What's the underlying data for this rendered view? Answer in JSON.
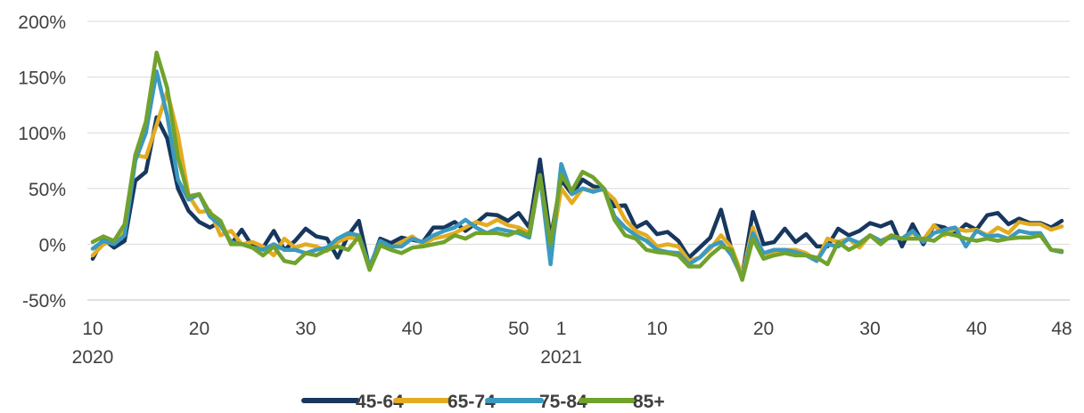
{
  "chart_data": {
    "type": "line",
    "title": "",
    "xlabel": "",
    "ylabel": "",
    "ylim": [
      -50,
      200
    ],
    "y_ticks": [
      -50,
      0,
      50,
      100,
      150,
      200
    ],
    "y_tick_labels": [
      "-50%",
      "0%",
      "50%",
      "100%",
      "150%",
      "200%"
    ],
    "grid": "horizontal",
    "legend_position": "bottom",
    "x_tick_labels": [
      {
        "week": 10,
        "year": 2020,
        "label": "10",
        "sublabel": "2020"
      },
      {
        "week": 20,
        "year": 2020,
        "label": "20"
      },
      {
        "week": 30,
        "year": 2020,
        "label": "30"
      },
      {
        "week": 40,
        "year": 2020,
        "label": "40"
      },
      {
        "week": 50,
        "year": 2020,
        "label": "50"
      },
      {
        "week": 1,
        "year": 2021,
        "label": "1",
        "sublabel": "2021"
      },
      {
        "week": 10,
        "year": 2021,
        "label": "10"
      },
      {
        "week": 20,
        "year": 2021,
        "label": "20"
      },
      {
        "week": 30,
        "year": 2021,
        "label": "30"
      },
      {
        "week": 40,
        "year": 2021,
        "label": "40"
      },
      {
        "week": 48,
        "year": 2021,
        "label": "48"
      }
    ],
    "x": [
      "2020-W10",
      "2020-W11",
      "2020-W12",
      "2020-W13",
      "2020-W14",
      "2020-W15",
      "2020-W16",
      "2020-W17",
      "2020-W18",
      "2020-W19",
      "2020-W20",
      "2020-W21",
      "2020-W22",
      "2020-W23",
      "2020-W24",
      "2020-W25",
      "2020-W26",
      "2020-W27",
      "2020-W28",
      "2020-W29",
      "2020-W30",
      "2020-W31",
      "2020-W32",
      "2020-W33",
      "2020-W34",
      "2020-W35",
      "2020-W36",
      "2020-W37",
      "2020-W38",
      "2020-W39",
      "2020-W40",
      "2020-W41",
      "2020-W42",
      "2020-W43",
      "2020-W44",
      "2020-W45",
      "2020-W46",
      "2020-W47",
      "2020-W48",
      "2020-W49",
      "2020-W50",
      "2020-W51",
      "2020-W52",
      "2020-W53",
      "2021-W01",
      "2021-W02",
      "2021-W03",
      "2021-W04",
      "2021-W05",
      "2021-W06",
      "2021-W07",
      "2021-W08",
      "2021-W09",
      "2021-W10",
      "2021-W11",
      "2021-W12",
      "2021-W13",
      "2021-W14",
      "2021-W15",
      "2021-W16",
      "2021-W17",
      "2021-W18",
      "2021-W19",
      "2021-W20",
      "2021-W21",
      "2021-W22",
      "2021-W23",
      "2021-W24",
      "2021-W25",
      "2021-W26",
      "2021-W27",
      "2021-W28",
      "2021-W29",
      "2021-W30",
      "2021-W31",
      "2021-W32",
      "2021-W33",
      "2021-W34",
      "2021-W35",
      "2021-W36",
      "2021-W37",
      "2021-W38",
      "2021-W39",
      "2021-W40",
      "2021-W41",
      "2021-W42",
      "2021-W43",
      "2021-W44",
      "2021-W45",
      "2021-W46",
      "2021-W47",
      "2021-W48"
    ],
    "series": [
      {
        "name": "45-64",
        "color": "#17375E",
        "values": [
          -13,
          5,
          -3,
          3,
          57,
          65,
          114,
          95,
          50,
          30,
          20,
          15,
          20,
          0,
          13,
          -2,
          -3,
          12,
          -5,
          3,
          14,
          7,
          5,
          -12,
          8,
          21,
          -22,
          5,
          1,
          6,
          4,
          2,
          15,
          15,
          20,
          12,
          19,
          27,
          26,
          21,
          28,
          15,
          76,
          5,
          58,
          45,
          58,
          52,
          50,
          34,
          35,
          15,
          20,
          9,
          11,
          3,
          -12,
          -3,
          6,
          31,
          -5,
          -28,
          29,
          0,
          2,
          14,
          2,
          9,
          -2,
          -2,
          14,
          8,
          12,
          19,
          16,
          20,
          -2,
          18,
          0,
          17,
          15,
          9,
          18,
          13,
          26,
          28,
          18,
          23,
          19,
          19,
          15,
          21
        ]
      },
      {
        "name": "65-74",
        "color": "#E3AC20",
        "values": [
          -10,
          0,
          3,
          11,
          80,
          78,
          107,
          137,
          98,
          44,
          29,
          30,
          8,
          12,
          0,
          2,
          -2,
          -10,
          5,
          -3,
          0,
          -2,
          -6,
          2,
          6,
          5,
          -20,
          2,
          -3,
          2,
          7,
          0,
          5,
          7,
          10,
          15,
          20,
          17,
          22,
          17,
          15,
          10,
          62,
          -8,
          50,
          37,
          50,
          48,
          49,
          40,
          22,
          12,
          8,
          -2,
          0,
          -2,
          -15,
          -12,
          -4,
          8,
          -3,
          -28,
          15,
          -12,
          -8,
          -5,
          -5,
          -8,
          -15,
          5,
          2,
          5,
          -3,
          8,
          3,
          8,
          5,
          10,
          4,
          17,
          8,
          14,
          12,
          13,
          8,
          15,
          10,
          20,
          18,
          18,
          13,
          16
        ]
      },
      {
        "name": "75-84",
        "color": "#3B9AC0",
        "values": [
          -4,
          3,
          0,
          8,
          75,
          100,
          155,
          115,
          58,
          40,
          45,
          25,
          17,
          2,
          0,
          -3,
          -5,
          0,
          -5,
          -5,
          -8,
          -5,
          -3,
          5,
          10,
          8,
          -20,
          3,
          -2,
          -2,
          5,
          2,
          8,
          12,
          15,
          22,
          15,
          10,
          14,
          12,
          10,
          6,
          62,
          -18,
          72,
          45,
          50,
          47,
          50,
          25,
          15,
          8,
          3,
          -5,
          -7,
          -8,
          -18,
          -12,
          -2,
          2,
          -10,
          -30,
          10,
          -8,
          -5,
          -5,
          -7,
          -10,
          -15,
          0,
          -2,
          5,
          1,
          8,
          3,
          6,
          5,
          12,
          2,
          10,
          13,
          15,
          -2,
          12,
          7,
          8,
          5,
          12,
          10,
          10,
          -5,
          -7
        ]
      },
      {
        "name": "85+",
        "color": "#71A22D",
        "values": [
          2,
          7,
          3,
          18,
          80,
          110,
          172,
          140,
          78,
          43,
          45,
          28,
          21,
          0,
          0,
          -3,
          -10,
          -2,
          -15,
          -17,
          -8,
          -10,
          -5,
          -2,
          -5,
          7,
          -23,
          -1,
          -5,
          -8,
          -3,
          -2,
          0,
          2,
          8,
          5,
          10,
          10,
          10,
          8,
          12,
          8,
          62,
          0,
          62,
          48,
          65,
          60,
          50,
          22,
          8,
          5,
          -5,
          -7,
          -8,
          -10,
          -20,
          -20,
          -10,
          -2,
          -5,
          -32,
          5,
          -13,
          -10,
          -8,
          -10,
          -10,
          -12,
          -18,
          2,
          -5,
          0,
          8,
          0,
          8,
          5,
          5,
          5,
          3,
          10,
          8,
          5,
          3,
          5,
          3,
          5,
          6,
          6,
          8,
          -5,
          -6
        ]
      }
    ]
  }
}
